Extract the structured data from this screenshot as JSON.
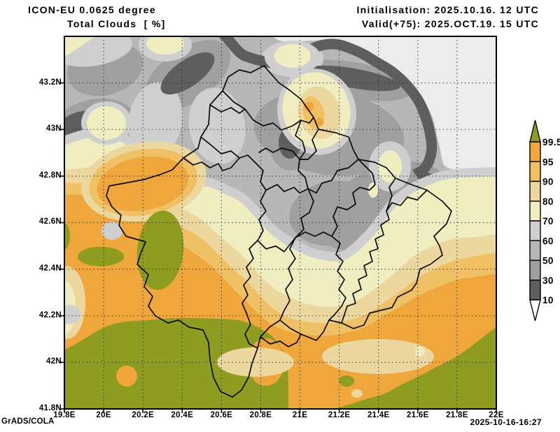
{
  "header": {
    "model_line": "ICON-EU 0.0625 degree",
    "param_line": "Total Clouds  [ %]",
    "init_line": "Initialisation: 2025.10.16. 12 UTC",
    "valid_line": "Valid(+75): 2025.OCT.19. 15 UTC"
  },
  "footer": {
    "credit": "GrADS/COLA",
    "timestamp": "2025-10-16-16:27"
  },
  "axes": {
    "lat_tick_labels": [
      "41.8N",
      "42N",
      "42.2N",
      "42.4N",
      "42.6N",
      "42.8N",
      "43N",
      "43.2N"
    ],
    "lon_tick_labels": [
      "19.8E",
      "20E",
      "20.2E",
      "20.4E",
      "20.6E",
      "20.8E",
      "21E",
      "21.2E",
      "21.4E",
      "21.6E",
      "21.8E",
      "22E"
    ]
  },
  "legend": {
    "tick_labels": [
      "99.5",
      "95",
      "90",
      "80",
      "70",
      "60",
      "50",
      "30",
      "10"
    ],
    "band_colors_top_to_bottom": [
      "#8e9c20",
      "#efa73c",
      "#f0c065",
      "#ecd79e",
      "#f0eec1",
      "#cfcfcf",
      "#b7b7b7",
      "#a0a0a0",
      "#5e5e5e",
      "#ffffff"
    ]
  },
  "chart_data": {
    "type": "filled-contour-map",
    "variable": "Total Clouds",
    "units": "%",
    "model": "ICON-EU 0.0625 degree",
    "initialisation": "2025.10.16. 12 UTC",
    "valid": "2025.OCT.19. 15 UTC",
    "forecast_hour": "+75",
    "lon_range": [
      "19.8E",
      "22E"
    ],
    "lat_range": [
      "41.8N",
      "43.4N"
    ],
    "contour_levels_percent": [
      10,
      30,
      50,
      60,
      70,
      80,
      90,
      95,
      99.5
    ],
    "level_colors": {
      "<10": "#ffffff",
      "10-30": "#5e5e5e",
      "30-50": "#a0a0a0",
      "50-60": "#b7b7b7",
      "60-70": "#cfcfcf",
      "70-80": "#f0eec1",
      "80-90": "#ecd79e",
      "90-95": "#f0c065",
      "95-99.5": "#efa73c",
      ">99.5": "#8e9c20"
    },
    "field_summary": "Overcast (>95%) south, broken gray mid values north, near-clear (<10%) pocket far northeast"
  }
}
